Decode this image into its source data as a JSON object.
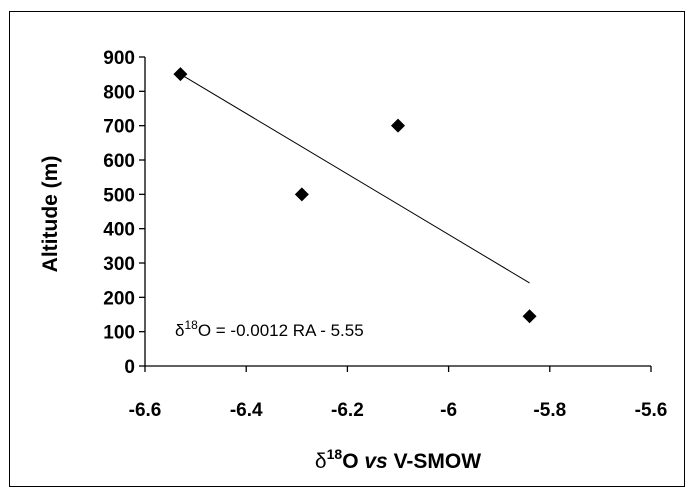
{
  "chart_data": {
    "type": "scatter",
    "title": "",
    "ylabel": "Altitude (m)",
    "xlabel": {
      "delta": "δ",
      "sup": "18",
      "o": "O ",
      "vs": "vs",
      "rest": " V-SMOW"
    },
    "xlim": [
      -6.6,
      -5.6
    ],
    "ylim": [
      0,
      900
    ],
    "xticks": [
      -6.6,
      -6.4,
      -6.2,
      -6.0,
      -5.8,
      -5.6
    ],
    "xtick_labels": [
      "-6.6",
      "-6.4",
      "-6.2",
      "-6",
      "-5.8",
      "-5.6"
    ],
    "yticks": [
      0,
      100,
      200,
      300,
      400,
      500,
      600,
      700,
      800,
      900
    ],
    "ytick_labels": [
      "0",
      "100",
      "200",
      "300",
      "400",
      "500",
      "600",
      "700",
      "800",
      "900"
    ],
    "grid": false,
    "marker": "diamond",
    "marker_color": "#000000",
    "points": [
      {
        "x": -6.53,
        "y": 850
      },
      {
        "x": -6.29,
        "y": 500
      },
      {
        "x": -6.1,
        "y": 700
      },
      {
        "x": -5.84,
        "y": 145
      }
    ],
    "trendline": {
      "x_start": -6.53,
      "y_start": 850,
      "x_end": -5.84,
      "y_end": 242
    },
    "annotation": {
      "delta": "δ",
      "sup": "18",
      "rest": "O = -0.0012 RA - 5.55"
    }
  }
}
